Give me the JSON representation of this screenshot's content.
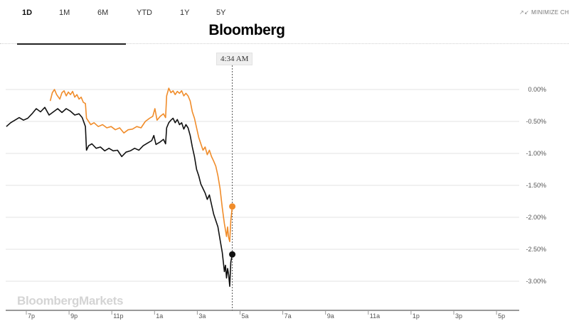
{
  "tabs": [
    {
      "label": "1D",
      "active": true
    },
    {
      "label": "1M",
      "active": false
    },
    {
      "label": "6M",
      "active": false
    },
    {
      "label": "YTD",
      "active": false
    },
    {
      "label": "1Y",
      "active": false
    },
    {
      "label": "5Y",
      "active": false
    }
  ],
  "header": {
    "brand": "Bloomberg",
    "minimize_label": "MINIMIZE CH",
    "crosshair_time": "4:34 AM"
  },
  "watermark": "BloombergMarkets",
  "colors": {
    "orange": "#f08c2a",
    "black": "#111111",
    "grid": "#e3e3e3",
    "crosshair": "#555555"
  },
  "chart_data": {
    "type": "line",
    "title": "",
    "xlabel": "",
    "ylabel": "",
    "x_ticks": [
      "7p",
      "9p",
      "11p",
      "1a",
      "3a",
      "5a",
      "7a",
      "9a",
      "11a",
      "1p",
      "3p",
      "5p"
    ],
    "y_ticks": [
      "0.00%",
      "-0.50%",
      "-1.00%",
      "-1.50%",
      "-2.00%",
      "-2.50%",
      "-3.00%"
    ],
    "ylim": [
      -3.4,
      0.35
    ],
    "x_unit": "hours since 6 PM",
    "xlim": [
      0,
      24
    ],
    "crosshair_x": 10.57,
    "legend": "none",
    "grid": true,
    "series": [
      {
        "color": "orange",
        "points": [
          [
            2.05,
            -0.18
          ],
          [
            2.15,
            -0.05
          ],
          [
            2.25,
            0.0
          ],
          [
            2.35,
            -0.08
          ],
          [
            2.5,
            -0.15
          ],
          [
            2.6,
            -0.05
          ],
          [
            2.7,
            -0.02
          ],
          [
            2.8,
            -0.1
          ],
          [
            2.9,
            -0.04
          ],
          [
            3.0,
            -0.08
          ],
          [
            3.1,
            -0.03
          ],
          [
            3.2,
            -0.12
          ],
          [
            3.3,
            -0.08
          ],
          [
            3.4,
            -0.15
          ],
          [
            3.5,
            -0.12
          ],
          [
            3.6,
            -0.2
          ],
          [
            3.7,
            -0.22
          ],
          [
            3.75,
            -0.45
          ],
          [
            3.85,
            -0.5
          ],
          [
            3.95,
            -0.55
          ],
          [
            4.1,
            -0.52
          ],
          [
            4.3,
            -0.58
          ],
          [
            4.5,
            -0.55
          ],
          [
            4.7,
            -0.6
          ],
          [
            4.9,
            -0.58
          ],
          [
            5.1,
            -0.63
          ],
          [
            5.3,
            -0.6
          ],
          [
            5.5,
            -0.68
          ],
          [
            5.7,
            -0.63
          ],
          [
            5.9,
            -0.62
          ],
          [
            6.1,
            -0.58
          ],
          [
            6.3,
            -0.6
          ],
          [
            6.5,
            -0.5
          ],
          [
            6.7,
            -0.45
          ],
          [
            6.85,
            -0.42
          ],
          [
            6.95,
            -0.3
          ],
          [
            7.05,
            -0.48
          ],
          [
            7.2,
            -0.42
          ],
          [
            7.35,
            -0.38
          ],
          [
            7.45,
            -0.44
          ],
          [
            7.5,
            -0.1
          ],
          [
            7.6,
            0.02
          ],
          [
            7.7,
            -0.05
          ],
          [
            7.8,
            -0.02
          ],
          [
            7.9,
            -0.08
          ],
          [
            8.0,
            -0.03
          ],
          [
            8.1,
            -0.06
          ],
          [
            8.2,
            -0.02
          ],
          [
            8.3,
            -0.1
          ],
          [
            8.4,
            -0.06
          ],
          [
            8.5,
            -0.1
          ],
          [
            8.6,
            -0.18
          ],
          [
            8.7,
            -0.35
          ],
          [
            8.8,
            -0.45
          ],
          [
            8.9,
            -0.6
          ],
          [
            9.0,
            -0.75
          ],
          [
            9.1,
            -0.85
          ],
          [
            9.2,
            -0.95
          ],
          [
            9.3,
            -0.9
          ],
          [
            9.4,
            -1.02
          ],
          [
            9.5,
            -0.95
          ],
          [
            9.6,
            -1.05
          ],
          [
            9.7,
            -1.12
          ],
          [
            9.8,
            -1.2
          ],
          [
            9.9,
            -1.35
          ],
          [
            10.0,
            -1.55
          ],
          [
            10.1,
            -1.85
          ],
          [
            10.2,
            -2.1
          ],
          [
            10.3,
            -2.3
          ],
          [
            10.35,
            -2.15
          ],
          [
            10.4,
            -2.32
          ],
          [
            10.45,
            -2.38
          ],
          [
            10.5,
            -2.05
          ],
          [
            10.57,
            -1.83
          ]
        ]
      },
      {
        "color": "black",
        "points": [
          [
            0.0,
            -0.58
          ],
          [
            0.2,
            -0.52
          ],
          [
            0.4,
            -0.48
          ],
          [
            0.6,
            -0.44
          ],
          [
            0.8,
            -0.48
          ],
          [
            1.0,
            -0.45
          ],
          [
            1.2,
            -0.38
          ],
          [
            1.4,
            -0.3
          ],
          [
            1.6,
            -0.35
          ],
          [
            1.8,
            -0.28
          ],
          [
            2.0,
            -0.4
          ],
          [
            2.2,
            -0.35
          ],
          [
            2.4,
            -0.3
          ],
          [
            2.6,
            -0.36
          ],
          [
            2.8,
            -0.3
          ],
          [
            3.0,
            -0.34
          ],
          [
            3.2,
            -0.4
          ],
          [
            3.4,
            -0.38
          ],
          [
            3.55,
            -0.44
          ],
          [
            3.7,
            -0.58
          ],
          [
            3.75,
            -0.95
          ],
          [
            3.85,
            -0.88
          ],
          [
            4.0,
            -0.85
          ],
          [
            4.2,
            -0.92
          ],
          [
            4.4,
            -0.9
          ],
          [
            4.6,
            -0.96
          ],
          [
            4.8,
            -0.92
          ],
          [
            5.0,
            -0.96
          ],
          [
            5.2,
            -0.95
          ],
          [
            5.4,
            -1.05
          ],
          [
            5.6,
            -0.98
          ],
          [
            5.8,
            -0.96
          ],
          [
            6.0,
            -0.92
          ],
          [
            6.2,
            -0.95
          ],
          [
            6.4,
            -0.88
          ],
          [
            6.6,
            -0.84
          ],
          [
            6.8,
            -0.8
          ],
          [
            6.9,
            -0.72
          ],
          [
            7.0,
            -0.86
          ],
          [
            7.2,
            -0.82
          ],
          [
            7.35,
            -0.78
          ],
          [
            7.45,
            -0.85
          ],
          [
            7.5,
            -0.6
          ],
          [
            7.6,
            -0.52
          ],
          [
            7.7,
            -0.48
          ],
          [
            7.8,
            -0.45
          ],
          [
            7.9,
            -0.52
          ],
          [
            8.0,
            -0.47
          ],
          [
            8.1,
            -0.55
          ],
          [
            8.2,
            -0.52
          ],
          [
            8.3,
            -0.62
          ],
          [
            8.4,
            -0.55
          ],
          [
            8.5,
            -0.6
          ],
          [
            8.6,
            -0.72
          ],
          [
            8.7,
            -0.9
          ],
          [
            8.8,
            -1.05
          ],
          [
            8.9,
            -1.25
          ],
          [
            9.0,
            -1.35
          ],
          [
            9.1,
            -1.48
          ],
          [
            9.2,
            -1.55
          ],
          [
            9.3,
            -1.62
          ],
          [
            9.4,
            -1.72
          ],
          [
            9.5,
            -1.65
          ],
          [
            9.6,
            -1.8
          ],
          [
            9.7,
            -1.95
          ],
          [
            9.8,
            -2.05
          ],
          [
            9.9,
            -2.15
          ],
          [
            10.0,
            -2.35
          ],
          [
            10.1,
            -2.55
          ],
          [
            10.2,
            -2.85
          ],
          [
            10.25,
            -2.75
          ],
          [
            10.3,
            -2.95
          ],
          [
            10.35,
            -2.8
          ],
          [
            10.4,
            -2.9
          ],
          [
            10.45,
            -3.08
          ],
          [
            10.5,
            -2.7
          ],
          [
            10.57,
            -2.58
          ]
        ]
      }
    ]
  }
}
